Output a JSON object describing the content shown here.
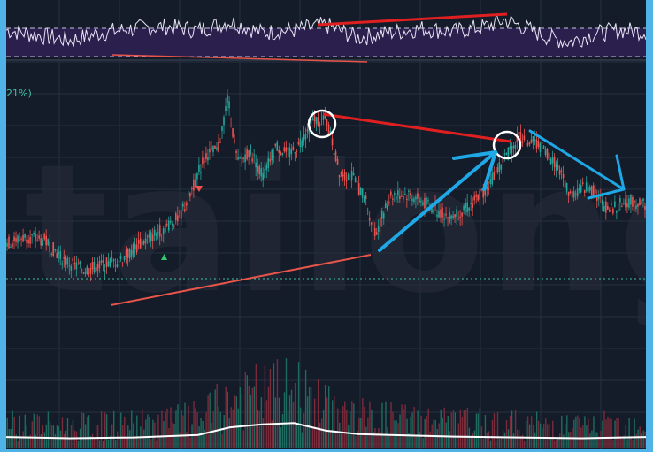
{
  "watermark": "tailong",
  "price_label": "21%)",
  "colors": {
    "background": "#141b29",
    "frame": "#4fb3e8",
    "grid": "#263041",
    "up": "#26a69a",
    "down": "#ef5350",
    "rsi_band": "#2a1f4d",
    "rsi_line": "#e8e4f4",
    "volume_ma": "#ffffff",
    "annotation_red": "#e02020",
    "annotation_trend": "#e8554a",
    "annotation_blue": "#1ea8e6",
    "baseline": "#3fc1a8"
  },
  "chart_data": {
    "type": "line",
    "title": "",
    "xlabel": "",
    "ylabel": "",
    "panels": [
      "rsi",
      "price",
      "volume"
    ],
    "price_path": [
      [
        0,
        0.3
      ],
      [
        0.03,
        0.33
      ],
      [
        0.06,
        0.31
      ],
      [
        0.09,
        0.22
      ],
      [
        0.12,
        0.18
      ],
      [
        0.15,
        0.2
      ],
      [
        0.18,
        0.23
      ],
      [
        0.21,
        0.3
      ],
      [
        0.24,
        0.36
      ],
      [
        0.27,
        0.42
      ],
      [
        0.29,
        0.55
      ],
      [
        0.31,
        0.7
      ],
      [
        0.33,
        0.72
      ],
      [
        0.345,
        0.96
      ],
      [
        0.36,
        0.66
      ],
      [
        0.38,
        0.72
      ],
      [
        0.4,
        0.6
      ],
      [
        0.42,
        0.74
      ],
      [
        0.44,
        0.7
      ],
      [
        0.46,
        0.76
      ],
      [
        0.48,
        0.86
      ],
      [
        0.5,
        0.85
      ],
      [
        0.52,
        0.62
      ],
      [
        0.54,
        0.6
      ],
      [
        0.56,
        0.5
      ],
      [
        0.575,
        0.34
      ],
      [
        0.6,
        0.52
      ],
      [
        0.63,
        0.52
      ],
      [
        0.66,
        0.47
      ],
      [
        0.69,
        0.42
      ],
      [
        0.72,
        0.46
      ],
      [
        0.75,
        0.55
      ],
      [
        0.78,
        0.7
      ],
      [
        0.8,
        0.78
      ],
      [
        0.83,
        0.75
      ],
      [
        0.86,
        0.65
      ],
      [
        0.88,
        0.52
      ],
      [
        0.91,
        0.56
      ],
      [
        0.94,
        0.45
      ],
      [
        0.97,
        0.49
      ],
      [
        1.0,
        0.48
      ]
    ],
    "rsi_path": [
      [
        0,
        0.55
      ],
      [
        0.05,
        0.45
      ],
      [
        0.1,
        0.35
      ],
      [
        0.15,
        0.5
      ],
      [
        0.2,
        0.58
      ],
      [
        0.25,
        0.62
      ],
      [
        0.3,
        0.55
      ],
      [
        0.35,
        0.72
      ],
      [
        0.4,
        0.5
      ],
      [
        0.45,
        0.55
      ],
      [
        0.5,
        0.65
      ],
      [
        0.55,
        0.4
      ],
      [
        0.6,
        0.5
      ],
      [
        0.65,
        0.58
      ],
      [
        0.7,
        0.52
      ],
      [
        0.75,
        0.62
      ],
      [
        0.78,
        0.75
      ],
      [
        0.82,
        0.55
      ],
      [
        0.85,
        0.4
      ],
      [
        0.88,
        0.32
      ],
      [
        0.92,
        0.48
      ],
      [
        0.96,
        0.55
      ],
      [
        1.0,
        0.52
      ]
    ],
    "volume_ma_path": [
      [
        0,
        0.25
      ],
      [
        0.1,
        0.22
      ],
      [
        0.2,
        0.24
      ],
      [
        0.3,
        0.3
      ],
      [
        0.35,
        0.48
      ],
      [
        0.4,
        0.55
      ],
      [
        0.45,
        0.58
      ],
      [
        0.5,
        0.4
      ],
      [
        0.55,
        0.32
      ],
      [
        0.6,
        0.3
      ],
      [
        0.7,
        0.26
      ],
      [
        0.8,
        0.24
      ],
      [
        0.9,
        0.22
      ],
      [
        1.0,
        0.25
      ]
    ],
    "grid": true
  }
}
